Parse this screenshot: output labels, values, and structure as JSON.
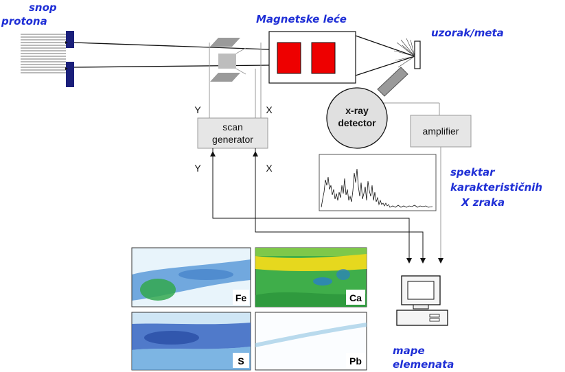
{
  "labels": {
    "beam_line1": "snop",
    "beam_line2": "protona",
    "lenses": "Magnetske leće",
    "sample": "uzorak/meta",
    "detector_line1": "x-ray",
    "detector_line2": "detector",
    "amplifier": "amplifier",
    "scan_line1": "scan",
    "scan_line2": "generator",
    "y_top": "Y",
    "x_top": "X",
    "y_bottom": "Y",
    "x_bottom": "X",
    "spectrum_line1": "spektar",
    "spectrum_line2": "karakterističnih",
    "spectrum_line3": "X zraka",
    "maps_line1": "mape",
    "maps_line2": "elemenata"
  },
  "element_maps": [
    {
      "tag": "Fe"
    },
    {
      "tag": "Ca"
    },
    {
      "tag": "S"
    },
    {
      "tag": "Pb"
    }
  ],
  "colors": {
    "label_blue": "#1f2fd6",
    "lens_red": "#ee0000",
    "aperture_navy": "#1a1f7a",
    "box_gray": "#e6e6e6"
  }
}
